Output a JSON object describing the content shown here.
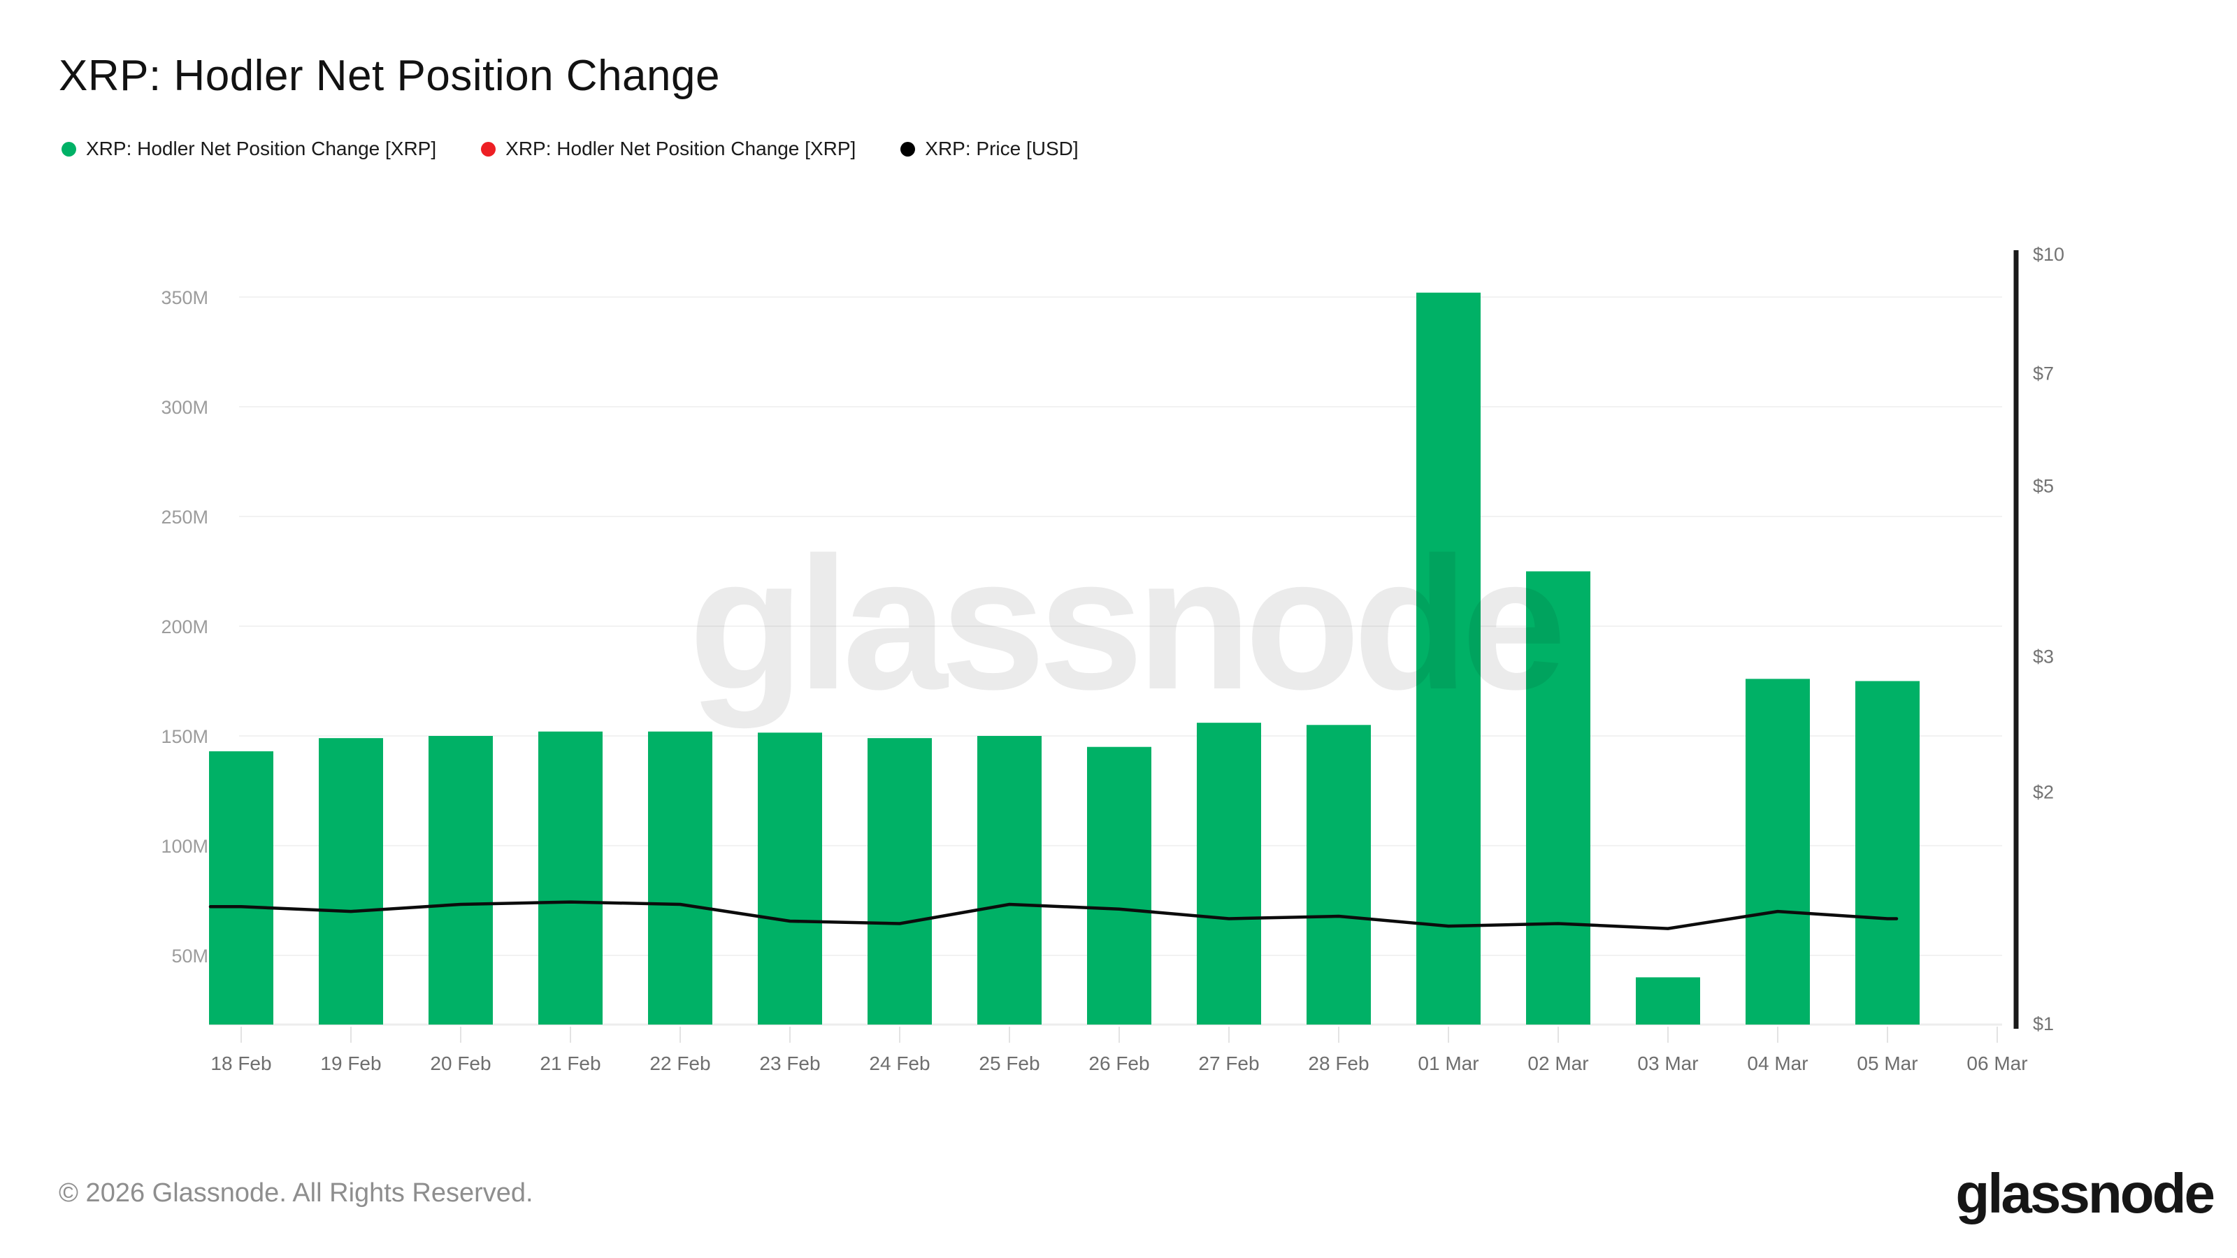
{
  "header": {
    "title": "XRP: Hodler Net Position Change"
  },
  "legend": {
    "items": [
      {
        "label": "XRP: Hodler Net Position Change [XRP]",
        "color": "#00b166"
      },
      {
        "label": "XRP: Hodler Net Position Change [XRP]",
        "color": "#ed1f24"
      },
      {
        "label": "XRP: Price [USD]",
        "color": "#000000"
      }
    ]
  },
  "watermark": {
    "text": "glassnode"
  },
  "footer": {
    "copyright": "© 2026 Glassnode. All Rights Reserved.",
    "logo_text": "glassnode"
  },
  "chart_data": {
    "type": "combo",
    "subtype": "bar+line",
    "categories": [
      "18 Feb",
      "19 Feb",
      "20 Feb",
      "21 Feb",
      "22 Feb",
      "23 Feb",
      "24 Feb",
      "25 Feb",
      "26 Feb",
      "27 Feb",
      "28 Feb",
      "01 Mar",
      "02 Mar",
      "03 Mar",
      "04 Mar",
      "05 Mar",
      "06 Mar"
    ],
    "series": [
      {
        "name": "XRP: Hodler Net Position Change [XRP]",
        "type": "bar",
        "axis": "left",
        "unit": "XRP",
        "color": "#00b166",
        "values": [
          143000000,
          149000000,
          150000000,
          152000000,
          152000000,
          151500000,
          149000000,
          150000000,
          145000000,
          156000000,
          155000000,
          352000000,
          225000000,
          40000000,
          176000000,
          175000000,
          null
        ]
      },
      {
        "name": "XRP: Price [USD]",
        "type": "line",
        "axis": "right",
        "unit": "USD",
        "color": "#0c0c0c",
        "values": [
          1.42,
          1.4,
          1.43,
          1.44,
          1.43,
          1.36,
          1.35,
          1.43,
          1.41,
          1.37,
          1.38,
          1.34,
          1.35,
          1.33,
          1.4,
          1.37,
          null
        ]
      }
    ],
    "left_axis": {
      "tick_labels": [
        "350M",
        "300M",
        "250M",
        "200M",
        "150M",
        "100M",
        "50M"
      ],
      "tick_values_M": [
        350,
        300,
        250,
        200,
        150,
        100,
        50
      ],
      "approx_visible_range_M": [
        19,
        370
      ],
      "scale": "linear"
    },
    "right_axis": {
      "tick_labels": [
        "$10",
        "$7",
        "$5",
        "$3",
        "$2",
        "$1"
      ],
      "tick_values": [
        10,
        7,
        5,
        3,
        2,
        1
      ],
      "scale": "log"
    },
    "grid": "horizontal",
    "legend_position": "top-left",
    "title": "XRP: Hodler Net Position Change"
  }
}
